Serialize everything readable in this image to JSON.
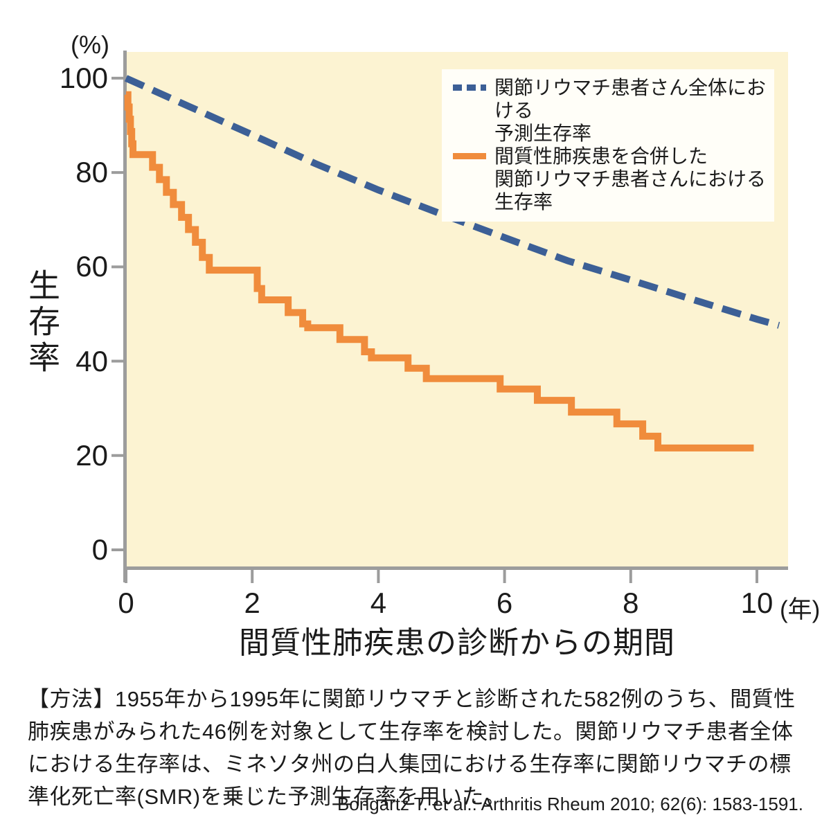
{
  "chart_data": {
    "type": "line",
    "title": "",
    "plot_bg_color": "#fcf3d2",
    "axis_color": "#9c9c9c",
    "x_axis": {
      "label": "間質性肺疾患の診断からの期間",
      "unit": "(年)",
      "ticks": [
        0,
        2,
        4,
        6,
        8,
        10
      ],
      "range": [
        0,
        10.5
      ]
    },
    "y_axis": {
      "label": "生存率",
      "unit": "(%)",
      "ticks": [
        100,
        80,
        60,
        40,
        20,
        0
      ],
      "range": [
        0,
        100
      ]
    },
    "grid": false,
    "legend_position": "top-right",
    "series": [
      {
        "name": "関節リウマチ患者さん全体における予測生存率",
        "style": "dashed",
        "color": "#3c5f96",
        "points": [
          [
            0,
            100
          ],
          [
            1,
            94
          ],
          [
            2,
            88
          ],
          [
            3,
            81.9
          ],
          [
            4,
            76.3
          ],
          [
            5,
            71.2
          ],
          [
            6,
            66.2
          ],
          [
            7,
            61.3
          ],
          [
            8,
            57.2
          ],
          [
            9,
            53.0
          ],
          [
            10,
            48.9
          ],
          [
            10.35,
            47.6
          ]
        ]
      },
      {
        "name": "間質性肺疾患を合併した関節リウマチ患者さんにおける生存率",
        "style": "solid-step",
        "color": "#f08c3c",
        "points": [
          [
            0,
            96.5
          ],
          [
            0.03,
            93.9
          ],
          [
            0.05,
            91.3
          ],
          [
            0.07,
            88.7
          ],
          [
            0.09,
            86.1
          ],
          [
            0.11,
            83.8
          ],
          [
            0.42,
            81.1
          ],
          [
            0.53,
            78.5
          ],
          [
            0.64,
            75.8
          ],
          [
            0.75,
            73.2
          ],
          [
            0.88,
            70.5
          ],
          [
            0.99,
            67.9
          ],
          [
            1.1,
            65.2
          ],
          [
            1.21,
            62.0
          ],
          [
            1.32,
            59.3
          ],
          [
            2.08,
            55.4
          ],
          [
            2.15,
            53.0
          ],
          [
            2.57,
            50.3
          ],
          [
            2.8,
            47.9
          ],
          [
            2.88,
            47.1
          ],
          [
            3.39,
            44.6
          ],
          [
            3.78,
            42.0
          ],
          [
            3.89,
            40.7
          ],
          [
            4.47,
            38.5
          ],
          [
            4.76,
            36.3
          ],
          [
            5.93,
            34.1
          ],
          [
            6.52,
            31.7
          ],
          [
            7.06,
            29.2
          ],
          [
            7.78,
            26.7
          ],
          [
            8.19,
            24.1
          ],
          [
            8.43,
            21.6
          ],
          [
            9.95,
            21.6
          ]
        ]
      }
    ],
    "legend": {
      "entries": [
        {
          "line1": "関節リウマチ患者さん全体における",
          "line2": "予測生存率"
        },
        {
          "line1": "間質性肺疾患を合併した",
          "line2": "関節リウマチ患者さんにおける生存率"
        }
      ]
    }
  },
  "caption": {
    "text": "【方法】1955年から1995年に関節リウマチと診断された582例のうち、間質性肺疾患がみられた46例を対象として生存率を検討した。関節リウマチ患者全体における生存率は、ミネソタ州の白人集団における生存率に関節リウマチの標準化死亡率(SMR)を乗じた予測生存率を用いた。"
  },
  "citation": "Bongartz T. et al.: Arthritis Rheum 2010; 62(6): 1583-1591."
}
